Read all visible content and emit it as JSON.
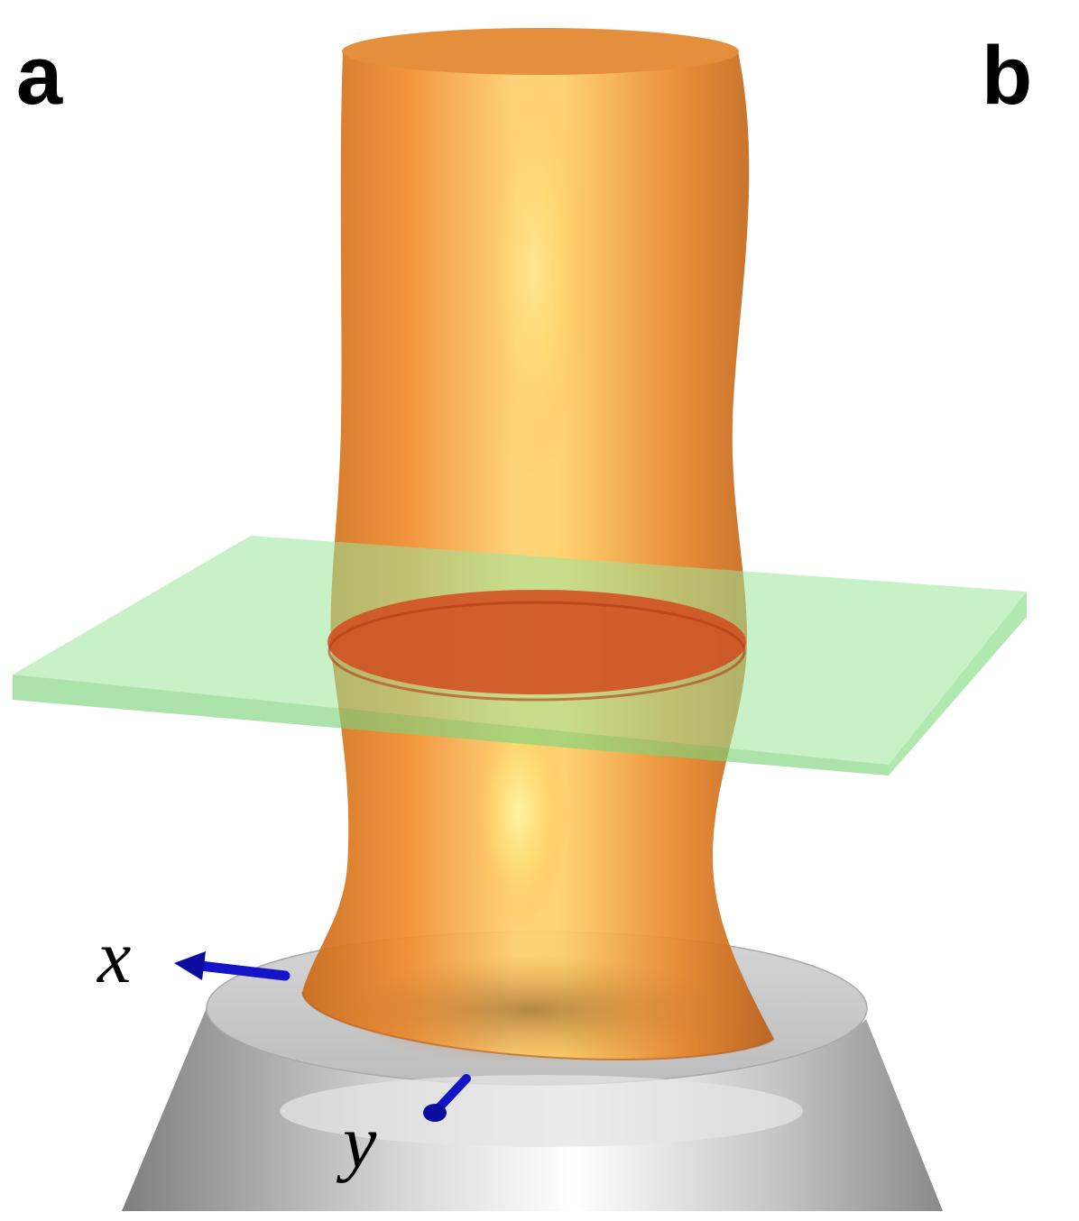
{
  "panels": {
    "a": "a",
    "b": "b"
  },
  "axes": {
    "x": "x",
    "y": "y"
  },
  "colors": {
    "column": "#f19333",
    "column_highlight": "#ffe27a",
    "cross_section": "#d8471c",
    "plane": "#9be69b",
    "pedestal": "#c9c9c9",
    "axis_arrow": "#1414c8"
  }
}
